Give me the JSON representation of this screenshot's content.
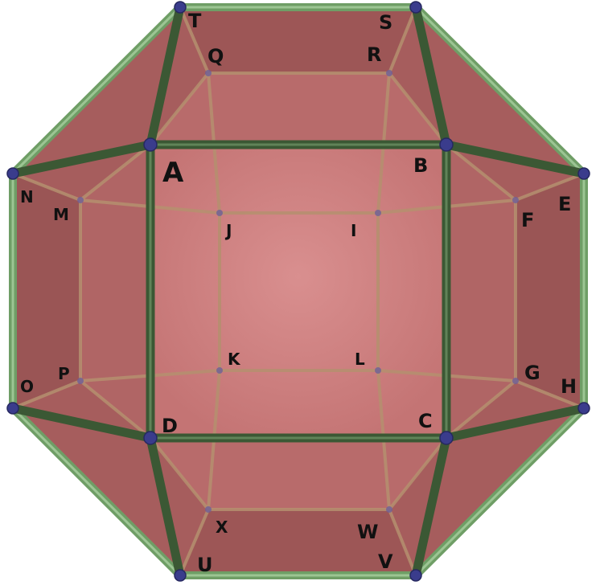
{
  "diagram": {
    "subject": "truncated-cuboctahedron-style polyhedron",
    "colors": {
      "background": "#ffffff",
      "back_face": "#cf8686",
      "side_face": "#a85e5e",
      "front_edge": "#3d5a36",
      "front_edge_highlight": "#5f8a56",
      "outline_edge": "#7daa74",
      "back_edge": "#b08a70",
      "vertex": "#3a3c8c"
    },
    "labels": {
      "A": "A",
      "B": "B",
      "C": "C",
      "D": "D",
      "E": "E",
      "F": "F",
      "G": "G",
      "H": "H",
      "I": "I",
      "J": "J",
      "K": "K",
      "L": "L",
      "M": "M",
      "N": "N",
      "O": "O",
      "P": "P",
      "Q": "Q",
      "R": "R",
      "S": "S",
      "T": "T",
      "U": "U",
      "V": "V",
      "W": "W",
      "X": "X"
    }
  }
}
